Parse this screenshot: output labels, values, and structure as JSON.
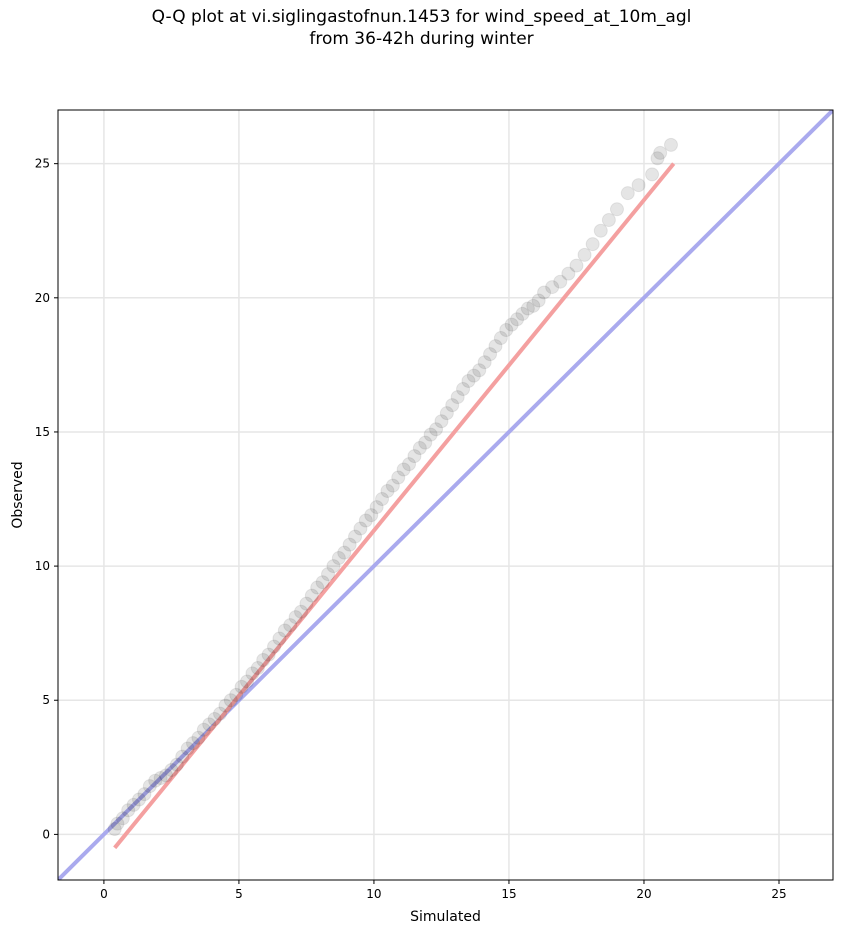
{
  "title": {
    "line1": "Q-Q plot at vi.siglingastofnun.1453 for wind_speed_at_10m_agl",
    "line2": "from 36-42h during winter"
  },
  "chart_data": {
    "type": "scatter",
    "xlabel": "Simulated",
    "ylabel": "Observed",
    "xlim": [
      -1.7,
      27.0
    ],
    "ylim": [
      -1.7,
      27.0
    ],
    "xticks": [
      0,
      5,
      10,
      15,
      20,
      25
    ],
    "yticks": [
      0,
      5,
      10,
      15,
      20,
      25
    ],
    "grid": true,
    "colors": {
      "points": "#000000",
      "identity_line": "#aaaaee",
      "fit_line": "#f4a0a0"
    },
    "reference_lines": {
      "identity": {
        "from": [
          -1.7,
          -1.7
        ],
        "to": [
          27.0,
          27.0
        ]
      },
      "fit": {
        "from": [
          0.4,
          -0.5
        ],
        "to": [
          21.1,
          25.0
        ]
      }
    },
    "quantiles": {
      "x": [
        0.4,
        0.5,
        0.7,
        0.9,
        1.1,
        1.3,
        1.5,
        1.7,
        1.9,
        2.1,
        2.3,
        2.5,
        2.7,
        2.9,
        3.1,
        3.3,
        3.5,
        3.7,
        3.9,
        4.1,
        4.3,
        4.5,
        4.7,
        4.9,
        5.1,
        5.3,
        5.5,
        5.7,
        5.9,
        6.1,
        6.3,
        6.5,
        6.7,
        6.9,
        7.1,
        7.3,
        7.5,
        7.7,
        7.9,
        8.1,
        8.3,
        8.5,
        8.7,
        8.9,
        9.1,
        9.3,
        9.5,
        9.7,
        9.9,
        10.1,
        10.3,
        10.5,
        10.7,
        10.9,
        11.1,
        11.3,
        11.5,
        11.7,
        11.9,
        12.1,
        12.3,
        12.5,
        12.7,
        12.9,
        13.1,
        13.3,
        13.5,
        13.7,
        13.9,
        14.1,
        14.3,
        14.5,
        14.7,
        14.9,
        15.1,
        15.3,
        15.5,
        15.7,
        15.9,
        16.1,
        16.3,
        16.6,
        16.9,
        17.2,
        17.5,
        17.8,
        18.1,
        18.4,
        18.7,
        19.0,
        19.4,
        19.8,
        20.3,
        20.5,
        20.6,
        21.0
      ],
      "y": [
        0.2,
        0.4,
        0.6,
        0.9,
        1.1,
        1.3,
        1.5,
        1.8,
        2.0,
        2.1,
        2.2,
        2.4,
        2.6,
        2.9,
        3.2,
        3.4,
        3.6,
        3.9,
        4.1,
        4.3,
        4.5,
        4.8,
        5.0,
        5.2,
        5.5,
        5.7,
        6.0,
        6.2,
        6.5,
        6.7,
        7.0,
        7.3,
        7.6,
        7.8,
        8.1,
        8.3,
        8.6,
        8.9,
        9.2,
        9.4,
        9.7,
        10.0,
        10.3,
        10.5,
        10.8,
        11.1,
        11.4,
        11.7,
        11.9,
        12.2,
        12.5,
        12.8,
        13.0,
        13.3,
        13.6,
        13.8,
        14.1,
        14.4,
        14.6,
        14.9,
        15.1,
        15.4,
        15.7,
        16.0,
        16.3,
        16.6,
        16.9,
        17.1,
        17.3,
        17.6,
        17.9,
        18.2,
        18.5,
        18.8,
        19.0,
        19.2,
        19.4,
        19.6,
        19.7,
        19.9,
        20.2,
        20.4,
        20.6,
        20.9,
        21.2,
        21.6,
        22.0,
        22.5,
        22.9,
        23.3,
        23.9,
        24.2,
        24.6,
        25.2,
        25.4,
        25.7
      ]
    }
  }
}
